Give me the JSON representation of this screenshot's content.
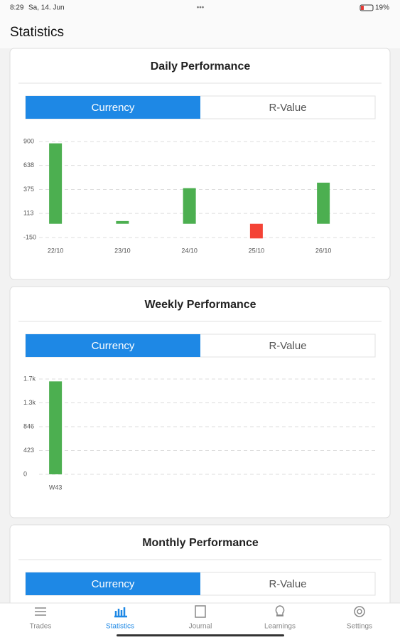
{
  "status_bar": {
    "time": "8:29",
    "date": "Sa, 14. Jun",
    "battery": "19%"
  },
  "header": {
    "title": "Statistics"
  },
  "cards": [
    {
      "title": "Daily Performance",
      "toggle": [
        "Currency",
        "R-Value"
      ]
    },
    {
      "title": "Weekly Performance",
      "toggle": [
        "Currency",
        "R-Value"
      ]
    },
    {
      "title": "Monthly Performance",
      "toggle": [
        "Currency",
        "R-Value"
      ]
    }
  ],
  "chart_data": [
    {
      "type": "bar",
      "categories": [
        "22/10",
        "23/10",
        "24/10",
        "25/10",
        "26/10"
      ],
      "values": [
        880,
        30,
        390,
        -160,
        450
      ],
      "colors": [
        "#4caf50",
        "#4caf50",
        "#4caf50",
        "#f44336",
        "#4caf50"
      ],
      "ylim": [
        -150,
        900
      ],
      "yticks": [
        900,
        638,
        375,
        113,
        -150
      ],
      "grid": true
    },
    {
      "type": "bar",
      "categories": [
        "W43"
      ],
      "values": [
        1650
      ],
      "colors": [
        "#4caf50"
      ],
      "ylim": [
        0,
        1692
      ],
      "yticks": [
        {
          "value": 1692,
          "label": "1.7k"
        },
        {
          "value": 1269,
          "label": "1.3k"
        },
        846,
        423,
        0
      ],
      "grid": true
    }
  ],
  "nav": {
    "items": [
      "Trades",
      "Statistics",
      "Journal",
      "Learnings",
      "Settings"
    ],
    "active": "Statistics"
  }
}
